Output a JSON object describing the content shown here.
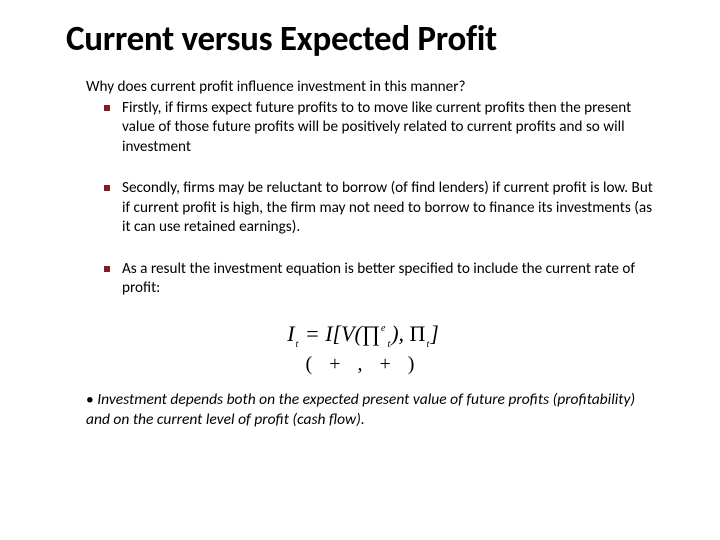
{
  "title": "Current versus Expected Profit",
  "intro": "Why does current profit influence investment in this manner?",
  "bullets": [
    "Firstly, if firms expect future profits to to move like current profits then the present value of those future profits will be positively related to current profits and so will investment",
    "Secondly, firms may be reluctant to borrow (of find lenders) if current profit is low.  But if current profit is high, the firm may not need to borrow to finance its investments (as it can use retained earnings).",
    "As a result the investment equation is better specified to include the current rate of profit:"
  ],
  "equation": {
    "line1_parts": {
      "I1": "I",
      "sub_t1": "t",
      "eq": " = ",
      "I2": "I",
      "lbrack": "[",
      "V": "V",
      "lparen": "(",
      "prod": "∏",
      "sup_e": "e",
      "sub_t2": "t",
      "rparen": ")",
      "comma": ", ",
      "Pi": "Π",
      "sub_t3": "t",
      "rbrack": "]"
    },
    "line2": "( + , + )"
  },
  "footnote": "Investment depends both on the expected present value of future profits (profitability) and on the current level of profit (cash flow).",
  "colors": {
    "bullet_marker": "#8b1a1a",
    "text": "#000000",
    "background": "#ffffff"
  }
}
